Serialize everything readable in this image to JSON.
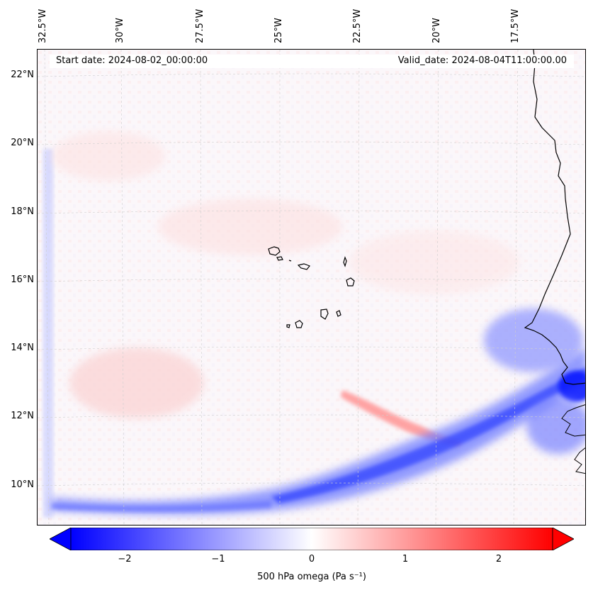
{
  "map": {
    "start_date": "Start date: 2024-08-02_00:00:00",
    "valid_date": "Valid_date: 2024-08-04T11:00:00.00",
    "lon_labels": [
      "32.5°W",
      "30°W",
      "27.5°W",
      "25°W",
      "22.5°W",
      "20°W",
      "17.5°W"
    ],
    "lat_labels": [
      "22°N",
      "20°N",
      "18°N",
      "16°N",
      "14°N",
      "12°N",
      "10°N"
    ],
    "field": "500 hPa omega",
    "unit_label": "500 hPa omega (Pa s⁻¹)"
  },
  "colorbar": {
    "ticks": [
      "−2",
      "−1",
      "0",
      "1",
      "2"
    ],
    "tick_values": [
      -2,
      -1,
      0,
      1,
      2
    ],
    "range": [
      -2.6,
      2.6
    ],
    "extend": "both",
    "colormap": "bwr",
    "color_low": "#0000ff",
    "color_mid": "#ffffff",
    "color_high": "#ff0000"
  },
  "colors": {
    "ascent": "#2b3cff",
    "subsidence": "#ff9a9a",
    "coastline": "#000000",
    "gridline": "#cccccc"
  }
}
